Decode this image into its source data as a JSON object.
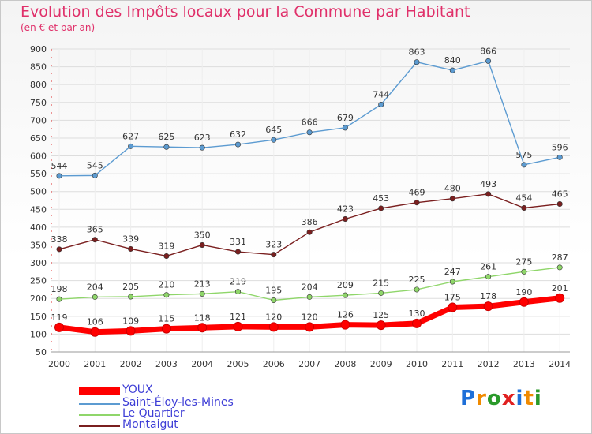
{
  "header": {
    "title": "Evolution des Impôts locaux pour la Commune par Habitant",
    "subtitle": "(en € et par an)"
  },
  "colors": {
    "title": "#e0306a",
    "axis_text": "#333333",
    "grid": "#dddddd",
    "legend_text": "#3d3dd6"
  },
  "logo": {
    "letters": [
      "P",
      "r",
      "o",
      "x",
      "i",
      "t",
      "i"
    ],
    "colors": [
      "#1e6fd8",
      "#f08a00",
      "#2a9a2a",
      "#e02020",
      "#1e6fd8",
      "#f08a00",
      "#2a9a2a"
    ]
  },
  "chart_data": {
    "type": "line",
    "title": "Evolution des Impôts locaux pour la Commune par Habitant",
    "subtitle": "(en € et par an)",
    "x": [
      "2000",
      "2001",
      "2002",
      "2003",
      "2004",
      "2005",
      "2006",
      "2007",
      "2008",
      "2009",
      "2010",
      "2011",
      "2012",
      "2013",
      "2014"
    ],
    "ylim": [
      50,
      900
    ],
    "yticks": [
      50,
      100,
      150,
      200,
      250,
      300,
      350,
      400,
      450,
      500,
      550,
      600,
      650,
      700,
      750,
      800,
      850,
      900
    ],
    "grid": true,
    "legend_position": "bottom-left",
    "series": [
      {
        "name": "YOUX",
        "color": "#ff0000",
        "values": [
          119,
          106,
          109,
          115,
          118,
          121,
          120,
          120,
          126,
          125,
          130,
          175,
          178,
          190,
          201
        ]
      },
      {
        "name": "Saint-Éloy-les-Mines",
        "color": "#5c9bd1",
        "values": [
          544,
          545,
          627,
          625,
          623,
          632,
          645,
          666,
          679,
          744,
          863,
          840,
          866,
          575,
          596
        ]
      },
      {
        "name": "Le Quartier",
        "color": "#8fd66a",
        "values": [
          198,
          204,
          205,
          210,
          213,
          219,
          195,
          204,
          209,
          215,
          225,
          247,
          261,
          275,
          287
        ]
      },
      {
        "name": "Montaigut",
        "color": "#7a1f1f",
        "values": [
          338,
          365,
          339,
          319,
          350,
          331,
          323,
          386,
          423,
          453,
          469,
          480,
          493,
          454,
          465
        ]
      }
    ]
  }
}
